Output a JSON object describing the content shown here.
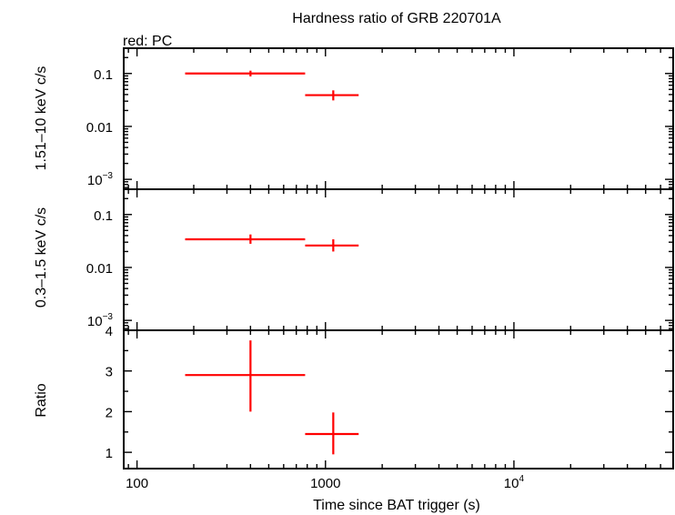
{
  "chart_data": {
    "type": "scatter",
    "title": "Hardness ratio of GRB 220701A",
    "legend": "red: PC",
    "xlabel": "Time since BAT trigger (s)",
    "xscale": "log",
    "xlim": [
      85,
      70000
    ],
    "x_ticks": [
      {
        "value": 100,
        "label": "100"
      },
      {
        "value": 1000,
        "label": "1000"
      },
      {
        "value": 10000,
        "base": "10",
        "exp": "4"
      }
    ],
    "panels": [
      {
        "id": "hard",
        "ylabel": "1.51–10 keV c/s",
        "yscale": "log",
        "ylim": [
          0.00065,
          0.3
        ],
        "y_ticks": [
          {
            "value": 0.1,
            "label": "0.1"
          },
          {
            "value": 0.01,
            "label": "0.01"
          },
          {
            "value": 0.001,
            "base": "10",
            "exp": "−3"
          }
        ],
        "series": [
          {
            "name": "PC",
            "color": "#ff0000",
            "points": [
              {
                "x": 400,
                "xlo": 180,
                "xhi": 780,
                "y": 0.1,
                "ylo": 0.088,
                "yhi": 0.113
              },
              {
                "x": 1100,
                "xlo": 780,
                "xhi": 1500,
                "y": 0.039,
                "ylo": 0.031,
                "yhi": 0.048
              }
            ]
          }
        ]
      },
      {
        "id": "soft",
        "ylabel": "0.3–1.5 keV c/s",
        "yscale": "log",
        "ylim": [
          0.00065,
          0.3
        ],
        "y_ticks": [
          {
            "value": 0.1,
            "label": "0.1"
          },
          {
            "value": 0.01,
            "label": "0.01"
          },
          {
            "value": 0.001,
            "base": "10",
            "exp": "−3"
          }
        ],
        "series": [
          {
            "name": "PC",
            "color": "#ff0000",
            "points": [
              {
                "x": 400,
                "xlo": 180,
                "xhi": 780,
                "y": 0.034,
                "ylo": 0.028,
                "yhi": 0.042
              },
              {
                "x": 1100,
                "xlo": 780,
                "xhi": 1500,
                "y": 0.026,
                "ylo": 0.02,
                "yhi": 0.034
              }
            ]
          }
        ]
      },
      {
        "id": "ratio",
        "ylabel": "Ratio",
        "yscale": "linear",
        "ylim": [
          0.6,
          4.0
        ],
        "y_ticks": [
          {
            "value": 1,
            "label": "1"
          },
          {
            "value": 2,
            "label": "2"
          },
          {
            "value": 3,
            "label": "3"
          },
          {
            "value": 4,
            "label": "4"
          }
        ],
        "series": [
          {
            "name": "PC",
            "color": "#ff0000",
            "points": [
              {
                "x": 400,
                "xlo": 180,
                "xhi": 780,
                "y": 2.9,
                "ylo": 2.0,
                "yhi": 3.75
              },
              {
                "x": 1100,
                "xlo": 780,
                "xhi": 1500,
                "y": 1.45,
                "ylo": 0.95,
                "yhi": 1.98
              }
            ]
          }
        ]
      }
    ]
  }
}
